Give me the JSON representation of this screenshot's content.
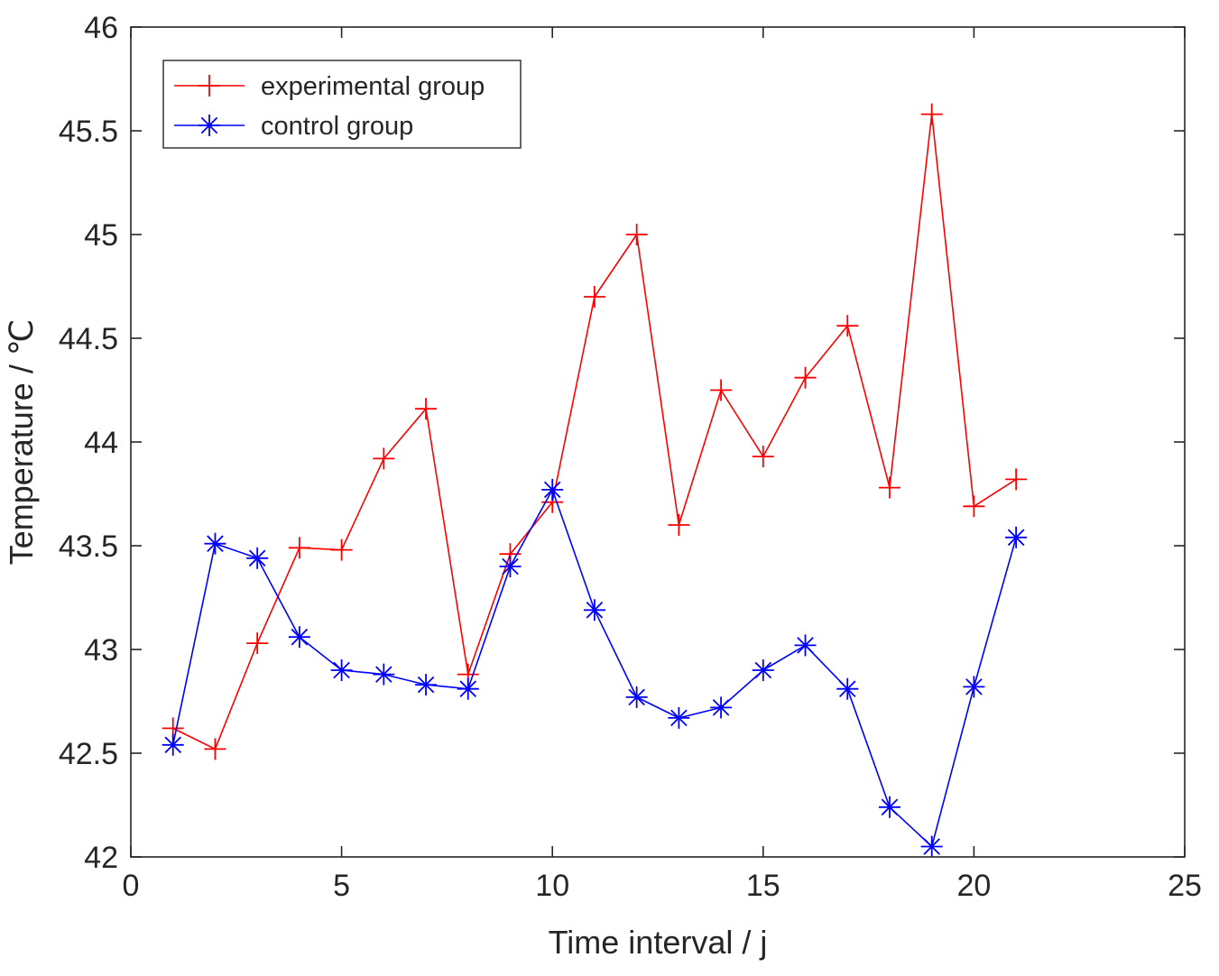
{
  "chart_data": {
    "type": "line",
    "title": "",
    "xlabel": "Time interval / j",
    "ylabel": "Temperature / ℃",
    "xlim": [
      0,
      25
    ],
    "ylim": [
      42,
      46
    ],
    "xticks": [
      0,
      5,
      10,
      15,
      20,
      25
    ],
    "yticks": [
      42,
      42.5,
      43,
      43.5,
      44,
      44.5,
      45,
      45.5,
      46
    ],
    "xtick_labels": [
      "0",
      "5",
      "10",
      "15",
      "20",
      "25"
    ],
    "ytick_labels": [
      "42",
      "42.5",
      "43",
      "43.5",
      "44",
      "44.5",
      "45",
      "45.5",
      "46"
    ],
    "grid": false,
    "legend_position": "top-left",
    "x": [
      1,
      2,
      3,
      4,
      5,
      6,
      7,
      8,
      9,
      10,
      11,
      12,
      13,
      14,
      15,
      16,
      17,
      18,
      19,
      20,
      21
    ],
    "series": [
      {
        "name": "experimental group",
        "color": "#ff0000",
        "marker": "plus",
        "values": [
          42.62,
          42.52,
          43.03,
          43.49,
          43.48,
          43.92,
          44.16,
          42.88,
          43.46,
          43.71,
          44.7,
          45.0,
          43.6,
          44.25,
          43.93,
          44.31,
          44.56,
          43.78,
          45.58,
          43.69,
          43.82
        ]
      },
      {
        "name": "control group",
        "color": "#0000ff",
        "marker": "star",
        "values": [
          42.54,
          43.51,
          43.44,
          43.06,
          42.9,
          42.88,
          42.83,
          42.81,
          43.4,
          43.77,
          43.19,
          42.77,
          42.67,
          42.72,
          42.9,
          43.02,
          42.81,
          42.24,
          42.05,
          42.82,
          43.54
        ]
      }
    ]
  }
}
